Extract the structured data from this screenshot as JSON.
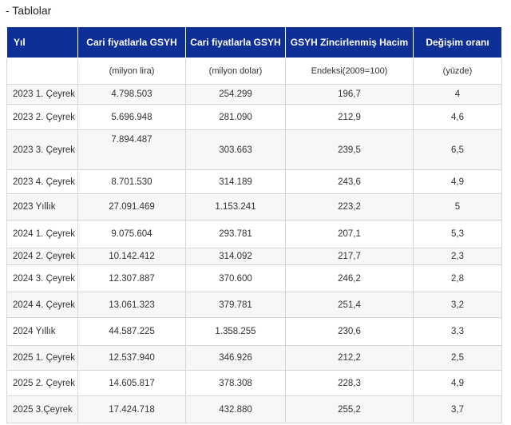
{
  "page": {
    "title": "- Tablolar"
  },
  "colors": {
    "header_bg": "#0d2f96",
    "header_text": "#ffffff",
    "row_alt_bg": "#f7f7f7",
    "grid_border": "#d6d6d6",
    "body_text": "#333333"
  },
  "chart_data": {
    "type": "table",
    "title": "Tablolar",
    "columns": [
      {
        "label": "Yıl",
        "unit": ""
      },
      {
        "label": "Cari fiyatlarla GSYH",
        "unit": "(milyon lira)"
      },
      {
        "label": "Cari fiyatlarla GSYH",
        "unit": "(milyon dolar)"
      },
      {
        "label": "GSYH Zincirlenmiş Hacim",
        "unit": "Endeksi(2009=100)"
      },
      {
        "label": "Değişim oranı",
        "unit": "(yüzde)"
      }
    ],
    "rows": [
      [
        "2023 1. Çeyrek",
        "4.798.503",
        "254.299",
        "196,7",
        "4"
      ],
      [
        "2023 2. Çeyrek",
        "5.696.948",
        "281.090",
        "212,9",
        "4,6"
      ],
      [
        "2023 3. Çeyrek",
        "7.894.487",
        "303.663",
        "239,5",
        "6,5"
      ],
      [
        "2023 4. Çeyrek",
        "8.701.530",
        "314.189",
        "243,6",
        "4,9"
      ],
      [
        "2023 Yıllık",
        "27.091.469",
        "1.153.241",
        "223,2",
        "5"
      ],
      [
        "2024 1. Çeyrek",
        "9.075.604",
        "293.781",
        "207,1",
        "5,3"
      ],
      [
        "2024 2. Çeyrek",
        "10.142.412",
        "314.092",
        "217,7",
        "2,3"
      ],
      [
        "2024 3. Çeyrek",
        "12.307.887",
        "370.600",
        "246,2",
        "2,8"
      ],
      [
        "2024 4. Çeyrek",
        "13.061.323",
        "379.781",
        "251,4",
        "3,2"
      ],
      [
        "2024 Yıllık",
        "44.587.225",
        "1.358.255",
        "230,6",
        "3,3"
      ],
      [
        "2025 1. Çeyrek",
        "12.537.940",
        "346.926",
        "212,2",
        "2,5"
      ],
      [
        "2025 2. Çeyrek",
        "14.605.817",
        "378.308",
        "228,3",
        "4,9"
      ],
      [
        "2025 3.Çeyrek",
        "17.424.718",
        "432.880",
        "255,2",
        "3,7"
      ]
    ]
  }
}
